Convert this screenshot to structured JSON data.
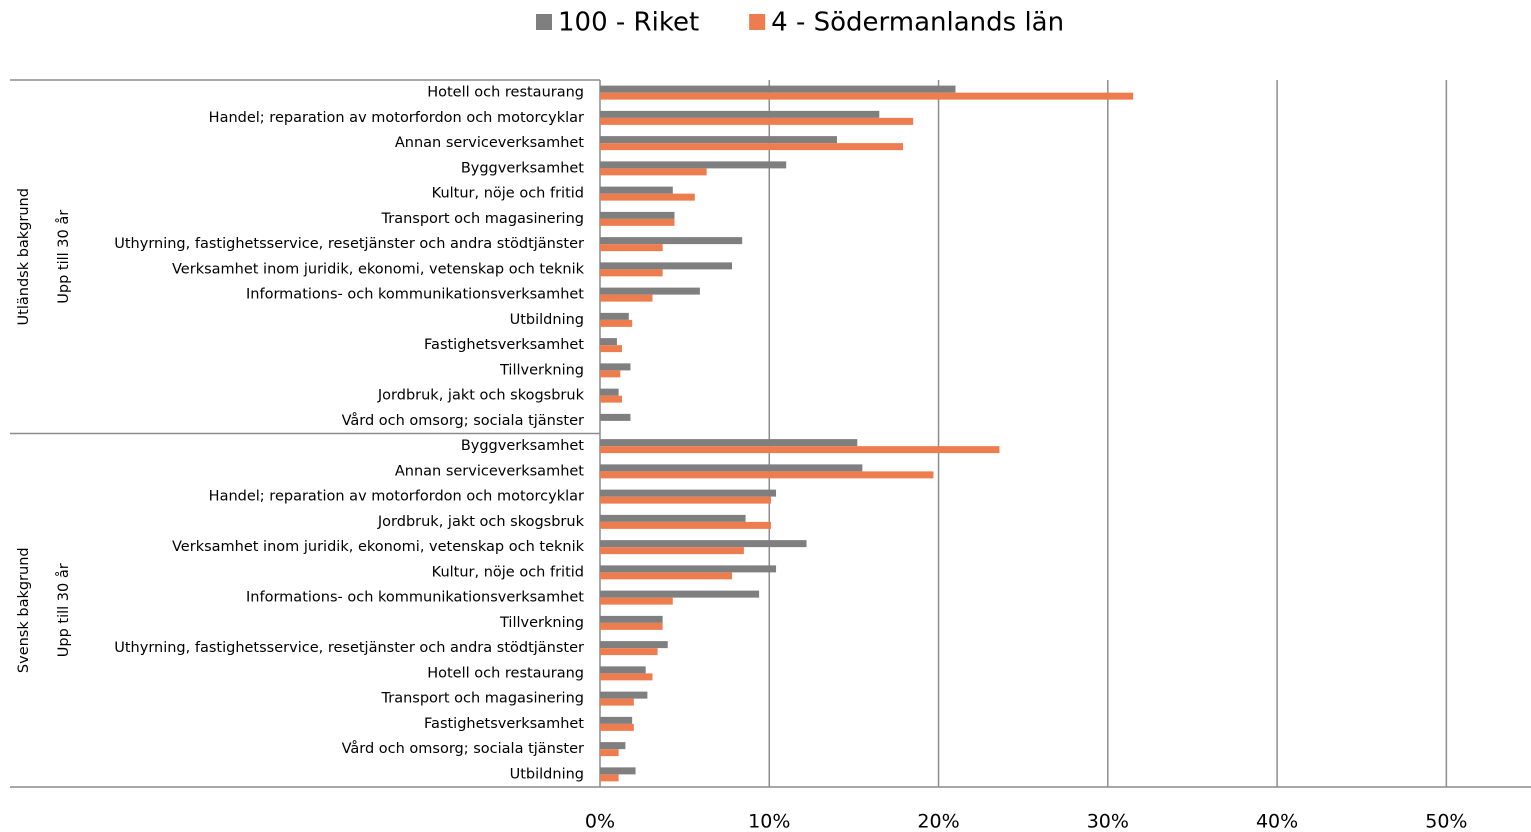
{
  "chart_data": {
    "type": "bar",
    "orientation": "horizontal",
    "groups": [
      {
        "name": "Utländsk bakgrund",
        "subgroup": "Upp till 30 år",
        "categories": [
          "Hotell och restaurang",
          "Handel; reparation av motorfordon och motorcyklar",
          "Annan serviceverksamhet",
          "Byggverksamhet",
          "Kultur, nöje och fritid",
          "Transport och magasinering",
          "Uthyrning, fastighetsservice, resetjänster och andra stödtjänster",
          "Verksamhet inom juridik, ekonomi, vetenskap och teknik",
          "Informations- och kommunikationsverksamhet",
          "Utbildning",
          "Fastighetsverksamhet",
          "Tillverkning",
          "Jordbruk, jakt och skogsbruk",
          "Vård och omsorg; sociala tjänster"
        ]
      },
      {
        "name": "Svensk bakgrund",
        "subgroup": "Upp till 30 år",
        "categories": [
          "Byggverksamhet",
          "Annan serviceverksamhet",
          "Handel; reparation av motorfordon och motorcyklar",
          "Jordbruk, jakt och skogsbruk",
          "Verksamhet inom juridik, ekonomi, vetenskap och teknik",
          "Kultur, nöje och fritid",
          "Informations- och kommunikationsverksamhet",
          "Tillverkning",
          "Uthyrning, fastighetsservice, resetjänster och andra stödtjänster",
          "Hotell och restaurang",
          "Transport och magasinering",
          "Fastighetsverksamhet",
          "Vård och omsorg; sociala tjänster",
          "Utbildning"
        ]
      }
    ],
    "series": [
      {
        "name": "100 - Riket",
        "color": "#7f7f7f",
        "values": [
          21.0,
          16.5,
          14.0,
          11.0,
          4.3,
          4.4,
          8.4,
          7.8,
          5.9,
          1.7,
          1.0,
          1.8,
          1.1,
          1.8,
          15.2,
          15.5,
          10.4,
          8.6,
          12.2,
          10.4,
          9.4,
          3.7,
          4.0,
          2.7,
          2.8,
          1.9,
          1.5,
          2.1
        ]
      },
      {
        "name": "4 - Södermanlands län",
        "color": "#ed7d4f",
        "values": [
          31.5,
          18.5,
          17.9,
          6.3,
          5.6,
          4.4,
          3.7,
          3.7,
          3.1,
          1.9,
          1.3,
          1.2,
          1.3,
          0,
          23.6,
          19.7,
          10.1,
          10.1,
          8.5,
          7.8,
          4.3,
          3.7,
          3.4,
          3.1,
          2.0,
          2.0,
          1.1,
          1.1
        ]
      }
    ],
    "xlim": [
      0,
      55
    ],
    "xticks": [
      {
        "value": 0,
        "label": "0%"
      },
      {
        "value": 10,
        "label": "10%"
      },
      {
        "value": 20,
        "label": "20%"
      },
      {
        "value": 30,
        "label": "30%"
      },
      {
        "value": 40,
        "label": "40%"
      },
      {
        "value": 50,
        "label": "50%"
      }
    ],
    "grid": true,
    "legend": "top"
  }
}
